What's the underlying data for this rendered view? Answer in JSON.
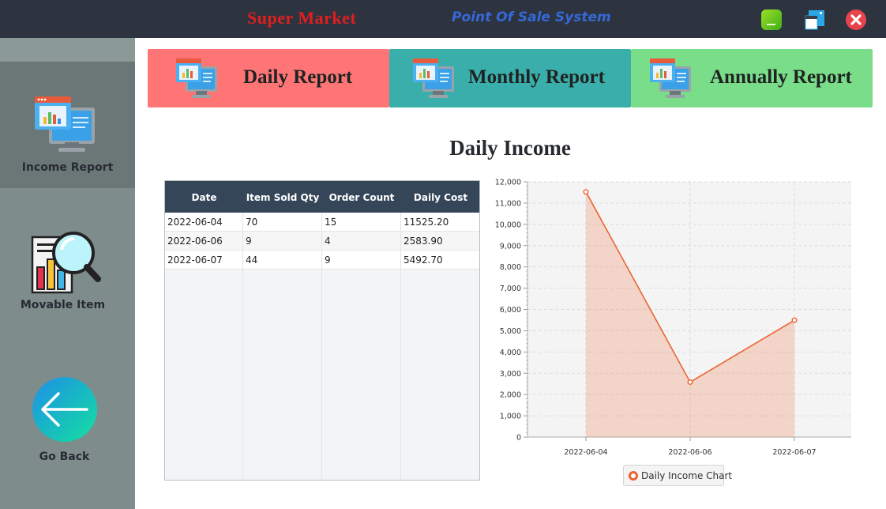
{
  "titlebar": {
    "title": "Super Market",
    "subtitle": "Point Of Sale System",
    "title_color": "#e21e1e",
    "subtitle_color": "#3568d8"
  },
  "sidebar": {
    "items": [
      {
        "label": "Income Report",
        "icon": "income-report-icon",
        "active": true
      },
      {
        "label": "Movable Item",
        "icon": "movable-item-icon",
        "active": false
      },
      {
        "label": "Go Back",
        "icon": "back-arrow-icon",
        "active": false
      }
    ]
  },
  "reports": [
    {
      "label": "Daily Report",
      "color": "#ff7575"
    },
    {
      "label": "Monthly Report",
      "color": "#3aaeaa"
    },
    {
      "label": "Annually Report",
      "color": "#79dd89"
    }
  ],
  "main": {
    "title": "Daily Income"
  },
  "table": {
    "columns": [
      "Date",
      "Item Sold Qty",
      "Order Count",
      "Daily Cost"
    ],
    "rows": [
      [
        "2022-06-04",
        "70",
        "15",
        "11525.20"
      ],
      [
        "2022-06-06",
        "9",
        "4",
        "2583.90"
      ],
      [
        "2022-06-07",
        "44",
        "9",
        "5492.70"
      ]
    ]
  },
  "chart_data": {
    "type": "area",
    "categories": [
      "2022-06-04",
      "2022-06-06",
      "2022-06-07"
    ],
    "series": [
      {
        "name": "Daily Income Chart",
        "values": [
          11525.2,
          2583.9,
          5492.7
        ],
        "color": "#ec6432"
      }
    ],
    "ylim": [
      0,
      12000
    ],
    "yticks": [
      0,
      1000,
      2000,
      3000,
      4000,
      5000,
      6000,
      7000,
      8000,
      9000,
      10000,
      11000,
      12000
    ],
    "ytick_labels": [
      "0",
      "1,000",
      "2,000",
      "3,000",
      "4,000",
      "5,000",
      "6,000",
      "7,000",
      "8,000",
      "9,000",
      "10,000",
      "11,000",
      "12,000"
    ],
    "grid": true,
    "legend_position": "bottom-center",
    "xlabel": "",
    "ylabel": ""
  }
}
